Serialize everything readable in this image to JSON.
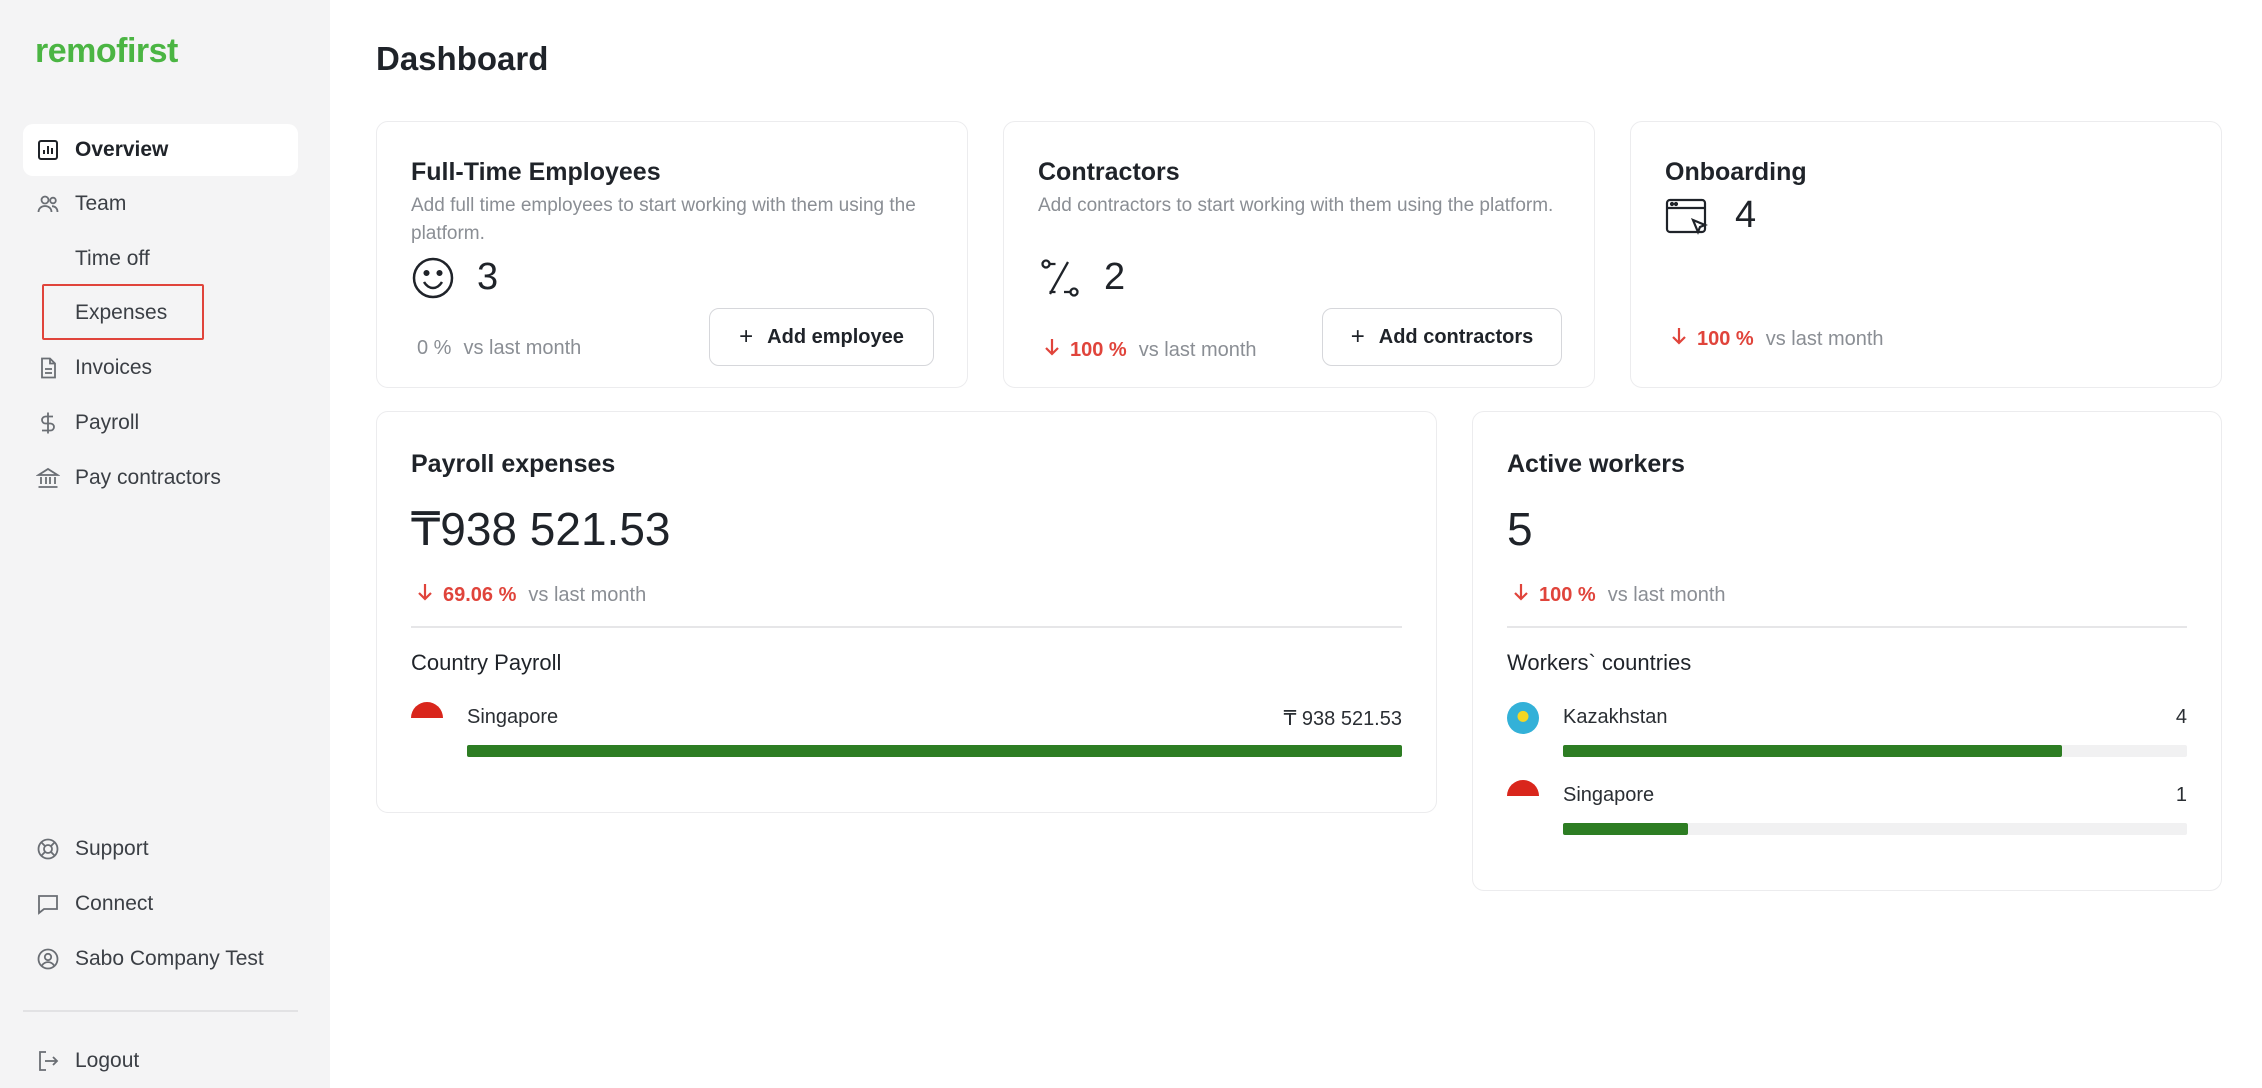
{
  "brand": {
    "logo": "remofirst"
  },
  "sidebar": {
    "items": [
      {
        "label": "Overview",
        "icon": "chart-icon"
      },
      {
        "label": "Team",
        "icon": "users-icon"
      },
      {
        "label": "Time off"
      },
      {
        "label": "Expenses"
      },
      {
        "label": "Invoices",
        "icon": "document-icon"
      },
      {
        "label": "Payroll",
        "icon": "dollar-icon"
      },
      {
        "label": "Pay contractors",
        "icon": "bank-icon"
      }
    ],
    "bottom": [
      {
        "label": "Support",
        "icon": "lifebuoy-icon"
      },
      {
        "label": "Connect",
        "icon": "chat-icon"
      },
      {
        "label": "Sabo Company Test",
        "icon": "user-circle-icon"
      },
      {
        "label": "Logout",
        "icon": "logout-icon"
      }
    ]
  },
  "page": {
    "title": "Dashboard"
  },
  "cards": {
    "fte": {
      "title": "Full-Time Employees",
      "desc": "Add full time employees to start working with them using the platform.",
      "value": "3",
      "change": "0 %",
      "vs": "vs last month",
      "button": "Add employee"
    },
    "contractors": {
      "title": "Contractors",
      "desc": "Add contractors to start working with them using the platform.",
      "value": "2",
      "change": "100 %",
      "vs": "vs last month",
      "button": "Add contractors"
    },
    "onboarding": {
      "title": "Onboarding",
      "value": "4",
      "change": "100 %",
      "vs": "vs last month"
    },
    "payroll": {
      "title": "Payroll expenses",
      "value": "₸938 521.53",
      "change": "69.06 %",
      "vs": "vs last month",
      "section": "Country Payroll",
      "countries": [
        {
          "name": "Singapore",
          "amount": "₸ 938 521.53",
          "fraction": 1.0
        }
      ]
    },
    "workers": {
      "title": "Active workers",
      "value": "5",
      "change": "100 %",
      "vs": "vs last month",
      "section": "Workers` countries",
      "countries": [
        {
          "name": "Kazakhstan",
          "count": "4",
          "fraction": 0.8
        },
        {
          "name": "Singapore",
          "count": "1",
          "fraction": 0.2
        }
      ]
    }
  },
  "colors": {
    "accent": "#4bb543",
    "bar": "#2d7d23",
    "negative": "#e0443b"
  }
}
